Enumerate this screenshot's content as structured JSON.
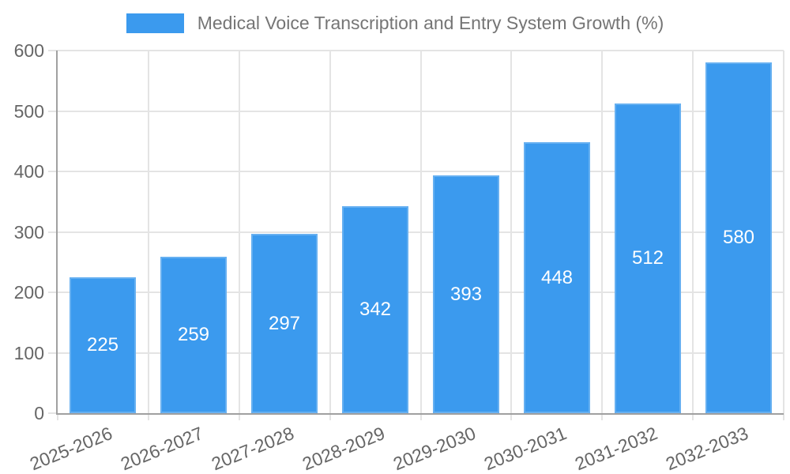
{
  "chart_data": {
    "type": "bar",
    "title": "Medical Voice Transcription and Entry System Growth (%)",
    "legend_position": "top",
    "categories": [
      "2025-2026",
      "2026-2027",
      "2027-2028",
      "2028-2029",
      "2029-2030",
      "2030-2031",
      "2031-2032",
      "2032-2033"
    ],
    "series": [
      {
        "name": "Medical Voice Transcription and Entry System Growth (%)",
        "values": [
          225,
          259,
          297,
          342,
          393,
          448,
          512,
          580
        ]
      }
    ],
    "value_labels_shown": true,
    "xlabel": "",
    "ylabel": "",
    "ylim": [
      0,
      600
    ],
    "yticks": [
      0,
      100,
      200,
      300,
      400,
      500,
      600
    ],
    "grid": true,
    "x_tick_rotation_deg": -22,
    "colors": {
      "bar": "#3b9aee",
      "value_label": "#ffffff",
      "grid": "#e4e4e4",
      "axis": "#a0a0a0",
      "tick_label": "#666666",
      "title": "#757575",
      "background": "#ffffff"
    }
  }
}
